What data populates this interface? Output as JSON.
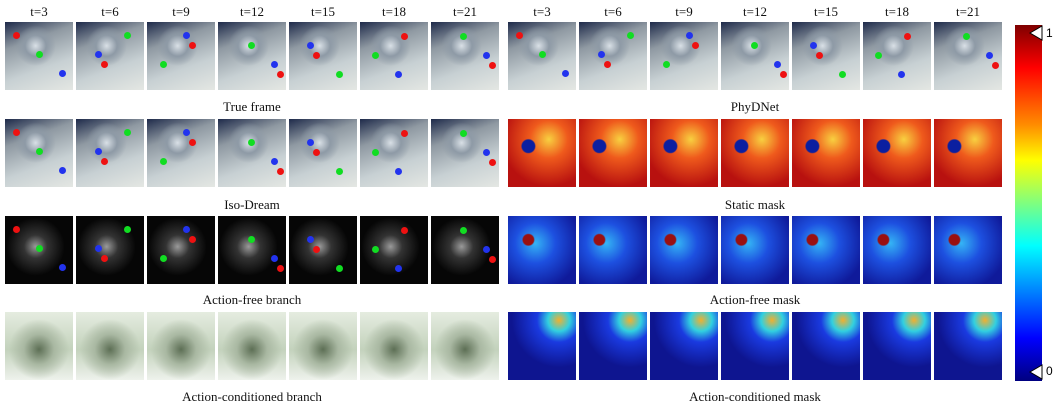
{
  "left_panel": {
    "time_labels": [
      "t=3",
      "t=6",
      "t=9",
      "t=12",
      "t=15",
      "t=18",
      "t=21"
    ],
    "rows": [
      {
        "caption": "True frame"
      },
      {
        "caption": "Iso-Dream"
      },
      {
        "caption": "Action-free branch"
      },
      {
        "caption": "Action-conditioned branch"
      }
    ]
  },
  "right_panel": {
    "time_labels": [
      "t=3",
      "t=6",
      "t=9",
      "t=12",
      "t=15",
      "t=18",
      "t=21"
    ],
    "rows": [
      {
        "caption": "PhyDNet"
      },
      {
        "caption": "Static mask"
      },
      {
        "caption": "Action-free mask"
      },
      {
        "caption": "Action-conditioned mask"
      }
    ]
  },
  "colorbar": {
    "max_label": 1,
    "min_label": 0
  }
}
